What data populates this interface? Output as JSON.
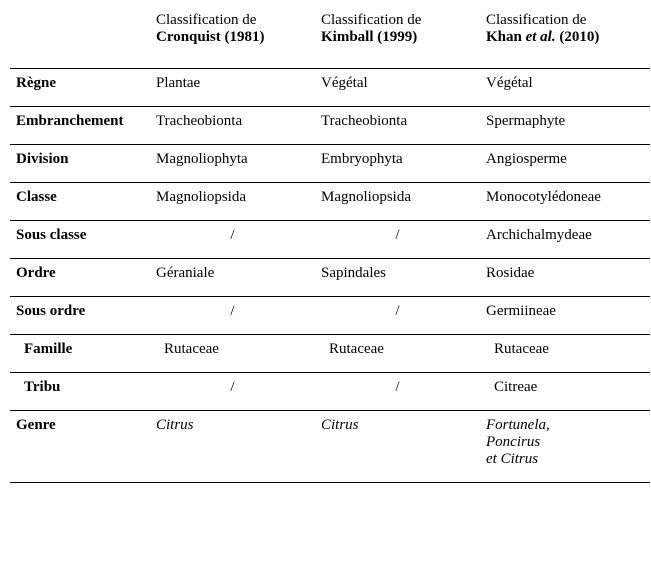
{
  "table": {
    "background_color": "#ffffff",
    "border_color": "#000000",
    "font_family": "Times New Roman",
    "font_size_pt": 11,
    "columns": [
      {
        "key": "rank",
        "label": ""
      },
      {
        "key": "cronquist",
        "prefix": "Classification de",
        "author": "Cronquist (1981)"
      },
      {
        "key": "kimball",
        "prefix": "Classification de",
        "author": "Kimball (1999)"
      },
      {
        "key": "khan",
        "prefix": "Classification de",
        "author_html": "Khan <em>et al.</em> (2010)"
      }
    ],
    "rows": [
      {
        "rank": "Règne",
        "cronquist": "Plantae",
        "kimball": "Végétal",
        "khan": "Végétal"
      },
      {
        "rank": "Embranchement",
        "cronquist": "Tracheobionta",
        "kimball": "Tracheobionta",
        "khan": "Spermaphyte"
      },
      {
        "rank": "Division",
        "cronquist": "Magnoliophyta",
        "kimball": "Embryophyta",
        "khan": "Angiosperme"
      },
      {
        "rank": "Classe",
        "cronquist": "Magnoliopsida",
        "kimball": "Magnoliopsida",
        "khan": "Monocotylédoneae"
      },
      {
        "rank": "Sous classe",
        "cronquist": "/",
        "kimball": "/",
        "khan": "Archichalmydeae",
        "center_slashes": true
      },
      {
        "rank": "Ordre",
        "cronquist": "Géraniale",
        "kimball": "Sapindales",
        "khan": "Rosidae"
      },
      {
        "rank": "Sous ordre",
        "cronquist": "/",
        "kimball": "/",
        "khan": "Germiineae",
        "center_slashes": true
      },
      {
        "rank": "Famille",
        "cronquist": "Rutaceae",
        "kimball": "Rutaceae",
        "khan": "Rutaceae",
        "indent_rank": true,
        "indent_cells": true
      },
      {
        "rank": "Tribu",
        "cronquist": "/",
        "kimball": "/",
        "khan": "Citreae",
        "indent_rank": true,
        "indent_khan": true,
        "center_slashes": true
      },
      {
        "rank": "Genre",
        "cronquist": "Citrus",
        "kimball": "Citrus",
        "khan_html": "Fortunela,<br>Poncirus<br>et Citrus",
        "italic": true
      }
    ]
  }
}
